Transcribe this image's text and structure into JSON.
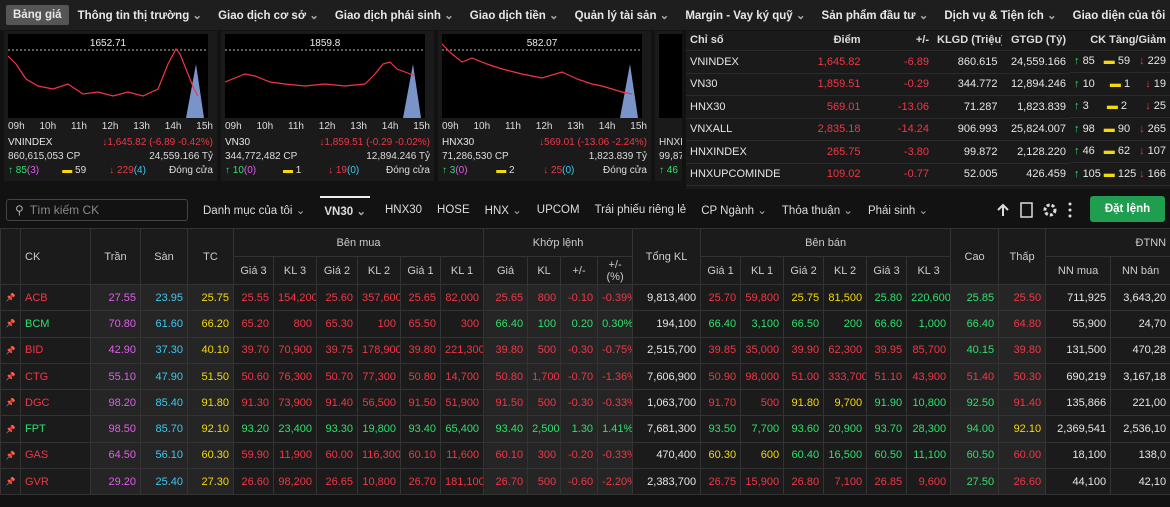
{
  "nav": [
    "Bảng giá",
    "Thông tin thị trường",
    "Giao dịch cơ sở",
    "Giao dịch phái sinh",
    "Giao dịch tiền",
    "Quản lý tài sản",
    "Margin - Vay ký quỹ",
    "Sản phẩm đầu tư",
    "Dịch vụ & Tiện ích",
    "Giao diện của tôi"
  ],
  "cards": [
    {
      "name": "VNINDEX",
      "ref": "1652.71",
      "change": "↓1,645.82 (-6.89 -0.42%)",
      "volume": "860,615,053 CP",
      "value": "24,559.166 Tỷ",
      "up": "85",
      "ceil": "(3)",
      "flat": "59",
      "down": "229",
      "floor": "(4)",
      "status": "Đóng cửa"
    },
    {
      "name": "VN30",
      "ref": "1859.8",
      "change": "↓1,859.51 (-0.29 -0.02%)",
      "volume": "344,772,482 CP",
      "value": "12,894.246 Tỷ",
      "up": "10",
      "ceil": "(0)",
      "flat": "1",
      "down": "19",
      "floor": "(0)",
      "status": "Đóng cửa"
    },
    {
      "name": "HNX30",
      "ref": "582.07",
      "change": "↓569.01 (-13.06 -2.24%)",
      "volume": "71,286,530 CP",
      "value": "1,823.839 Tỷ",
      "up": "3",
      "ceil": "(0)",
      "flat": "2",
      "down": "25",
      "floor": "(0)",
      "status": "Đóng cửa"
    }
  ],
  "partial_card": {
    "name": "HNXI",
    "volume": "99,87",
    "up": "46"
  },
  "times": [
    "09h",
    "10h",
    "11h",
    "12h",
    "13h",
    "14h",
    "15h"
  ],
  "index_table": {
    "headers": [
      "Chỉ số",
      "Điểm",
      "+/-",
      "KLGD (Triệu)",
      "GTGD (Tỷ)",
      "CK Tăng/Giảm"
    ],
    "rows": [
      [
        "VNINDEX",
        "1,645.82",
        "-6.89",
        "860.615",
        "24,559.166",
        "85",
        "59",
        "229"
      ],
      [
        "VN30",
        "1,859.51",
        "-0.29",
        "344.772",
        "12,894.246",
        "10",
        "1",
        "19"
      ],
      [
        "HNX30",
        "569.01",
        "-13.06",
        "71.287",
        "1,823.839",
        "3",
        "2",
        "25"
      ],
      [
        "VNXALL",
        "2,835.18",
        "-14.24",
        "906.993",
        "25,824.007",
        "98",
        "90",
        "265"
      ],
      [
        "HNXINDEX",
        "265.75",
        "-3.80",
        "99.872",
        "2,128.220",
        "46",
        "62",
        "107"
      ],
      [
        "HNXUPCOMINDE",
        "109.02",
        "-0.77",
        "52.005",
        "426.459",
        "105",
        "125",
        "166"
      ]
    ]
  },
  "toolbar": {
    "search": "Tìm kiếm CK",
    "tabs": [
      "Danh mục của tôi",
      "VN30",
      "HNX30",
      "HOSE",
      "HNX",
      "UPCOM",
      "Trái phiếu riêng lẻ",
      "CP Ngành",
      "Thỏa thuận",
      "Phái sinh"
    ],
    "order": "Đặt lệnh"
  },
  "board": {
    "headers": [
      "CK",
      "Trần",
      "Sàn",
      "TC",
      "Bên mua",
      "Khớp lệnh",
      "Tổng KL",
      "Bên bán",
      "Cao",
      "Thấp",
      "ĐTNN"
    ],
    "sub_headers": [
      "Giá 3",
      "KL 3",
      "Giá 2",
      "KL 2",
      "Giá 1",
      "KL 1",
      "Giá",
      "KL",
      "+/-",
      "+/- (%)",
      "Giá 1",
      "KL 1",
      "Giá 2",
      "KL 2",
      "Giá 3",
      "KL 3",
      "NN mua",
      "NN bán"
    ],
    "rows": [
      [
        "ACB",
        "27.55",
        "23.95",
        "25.75",
        "25.55",
        "154,200",
        "25.60",
        "357,600",
        "25.65",
        "82,000",
        "25.65",
        "800",
        "-0.10",
        "-0.39%",
        "9,813,400",
        "25.70",
        "59,800",
        "25.75",
        "81,500",
        "25.80",
        "220,600",
        "25.85",
        "25.50",
        "711,925",
        "3,643,20"
      ],
      [
        "BCM",
        "70.80",
        "61.60",
        "66.20",
        "65.20",
        "800",
        "65.30",
        "100",
        "65.50",
        "300",
        "66.40",
        "100",
        "0.20",
        "0.30%",
        "194,100",
        "66.40",
        "3,100",
        "66.50",
        "200",
        "66.60",
        "1,000",
        "66.40",
        "64.80",
        "55,900",
        "24,70"
      ],
      [
        "BID",
        "42.90",
        "37.30",
        "40.10",
        "39.70",
        "70,900",
        "39.75",
        "178,900",
        "39.80",
        "221,300",
        "39.80",
        "500",
        "-0.30",
        "-0.75%",
        "2,515,700",
        "39.85",
        "35,000",
        "39.90",
        "62,300",
        "39.95",
        "85,700",
        "40.15",
        "39.80",
        "131,500",
        "470,28"
      ],
      [
        "CTG",
        "55.10",
        "47.90",
        "51.50",
        "50.60",
        "76,300",
        "50.70",
        "77,300",
        "50.80",
        "14,700",
        "50.80",
        "1,700",
        "-0.70",
        "-1.36%",
        "7,606,900",
        "50.90",
        "98,000",
        "51.00",
        "333,700",
        "51.10",
        "43,900",
        "51.40",
        "50.30",
        "690,219",
        "3,167,18"
      ],
      [
        "DGC",
        "98.20",
        "85.40",
        "91.80",
        "91.30",
        "73,900",
        "91.40",
        "56,500",
        "91.50",
        "51,900",
        "91.50",
        "500",
        "-0.30",
        "-0.33%",
        "1,063,700",
        "91.70",
        "500",
        "91.80",
        "9,700",
        "91.90",
        "10,800",
        "92.50",
        "91.40",
        "135,866",
        "221,00"
      ],
      [
        "FPT",
        "98.50",
        "85.70",
        "92.10",
        "93.20",
        "23,400",
        "93.30",
        "19,800",
        "93.40",
        "65,400",
        "93.40",
        "2,500",
        "1.30",
        "1.41%",
        "7,681,300",
        "93.50",
        "7,700",
        "93.60",
        "20,900",
        "93.70",
        "28,300",
        "94.00",
        "92.10",
        "2,369,541",
        "2,536,10"
      ],
      [
        "GAS",
        "64.50",
        "56.10",
        "60.30",
        "59.90",
        "11,900",
        "60.00",
        "116,300",
        "60.10",
        "11,600",
        "60.10",
        "300",
        "-0.20",
        "-0.33%",
        "470,400",
        "60.30",
        "600",
        "60.40",
        "16,500",
        "60.50",
        "11,100",
        "60.50",
        "60.00",
        "18,100",
        "138,0"
      ],
      [
        "GVR",
        "29.20",
        "25.40",
        "27.30",
        "26.60",
        "98,200",
        "26.65",
        "10,800",
        "26.70",
        "181,100",
        "26.70",
        "500",
        "-0.60",
        "-2.20%",
        "2,383,700",
        "26.75",
        "15,900",
        "26.80",
        "7,100",
        "26.85",
        "9,600",
        "27.50",
        "26.60",
        "44,100",
        "42,10"
      ]
    ]
  }
}
